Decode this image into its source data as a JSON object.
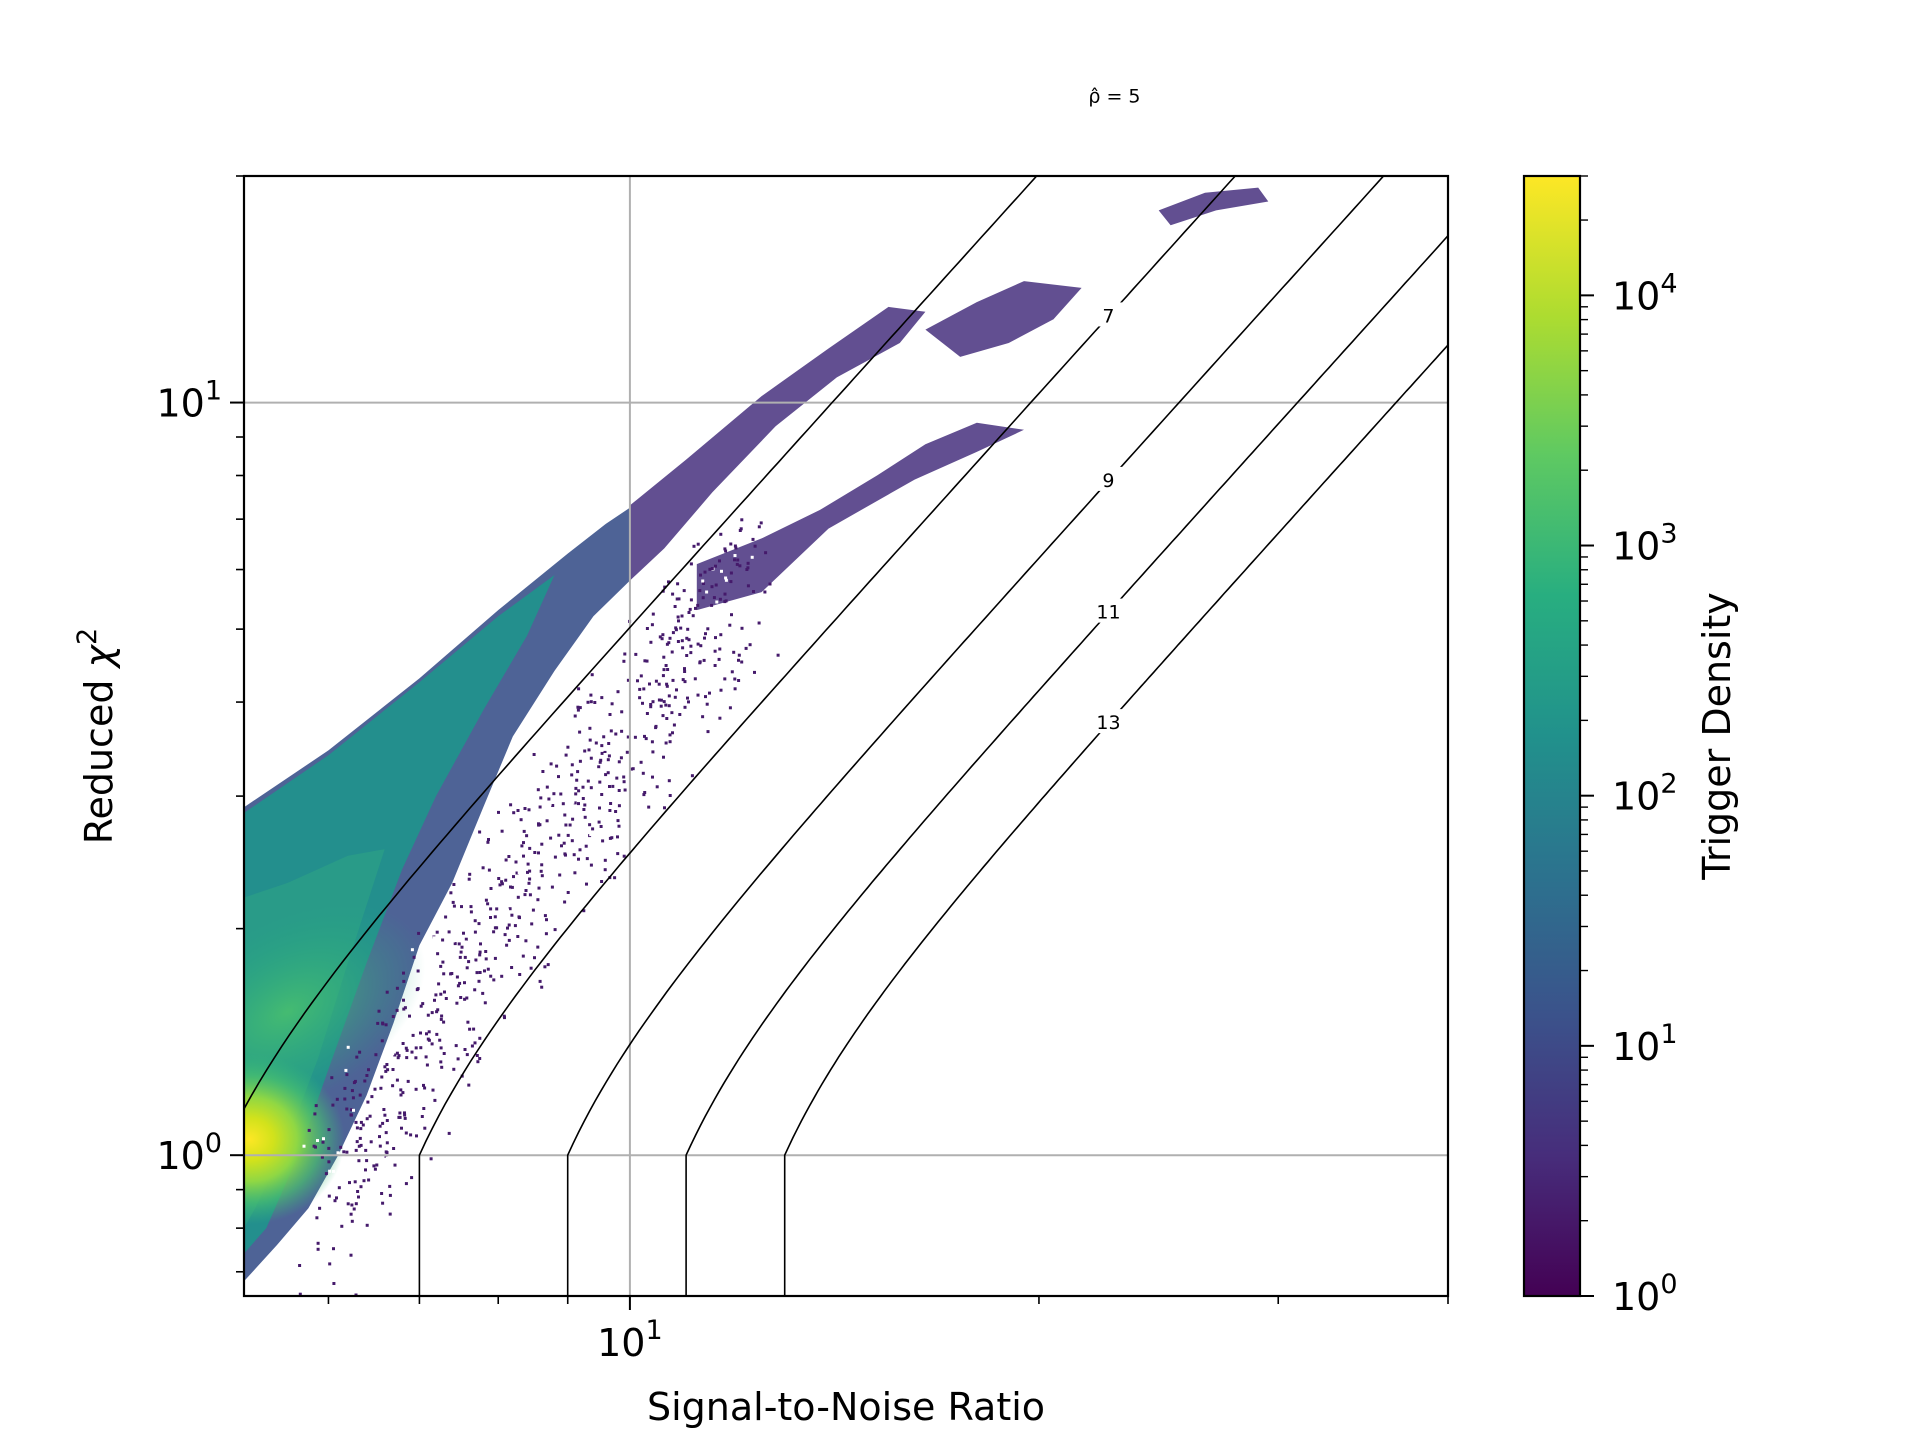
{
  "chart_data": {
    "type": "heatmap",
    "plot_kind": "hexbin density with contour lines",
    "xlabel": "Signal-to-Noise Ratio",
    "ylabel_text": "Reduced ",
    "ylabel_symbol": "χ",
    "ylabel_sup": "2",
    "x_scale": "log",
    "y_scale": "log",
    "xlim": [
      5.2,
      40
    ],
    "ylim": [
      0.65,
      20
    ],
    "grid": true,
    "x_ticks": [
      {
        "base": "10",
        "exp": "1",
        "value": 10
      }
    ],
    "y_ticks": [
      {
        "base": "10",
        "exp": "0",
        "value": 1
      },
      {
        "base": "10",
        "exp": "1",
        "value": 10
      }
    ],
    "colorbar": {
      "label": "Trigger Density",
      "scale": "log",
      "range": [
        1,
        30000
      ],
      "colormap": "viridis",
      "colors": [
        "#440154",
        "#472d7b",
        "#3b528b",
        "#2c728e",
        "#21918c",
        "#28ae80",
        "#5ec962",
        "#addc30",
        "#fde725"
      ],
      "ticks": [
        {
          "base": "10",
          "exp": "0",
          "value": 1
        },
        {
          "base": "10",
          "exp": "1",
          "value": 10
        },
        {
          "base": "10",
          "exp": "2",
          "value": 100
        },
        {
          "base": "10",
          "exp": "3",
          "value": 1000
        },
        {
          "base": "10",
          "exp": "4",
          "value": 10000
        }
      ]
    },
    "contours": [
      {
        "rho": 5,
        "label": "ρ̂ = 5"
      },
      {
        "rho": 7,
        "label": "7"
      },
      {
        "rho": 9,
        "label": "9"
      },
      {
        "rho": 11,
        "label": "11"
      },
      {
        "rho": 13,
        "label": "13"
      }
    ]
  }
}
